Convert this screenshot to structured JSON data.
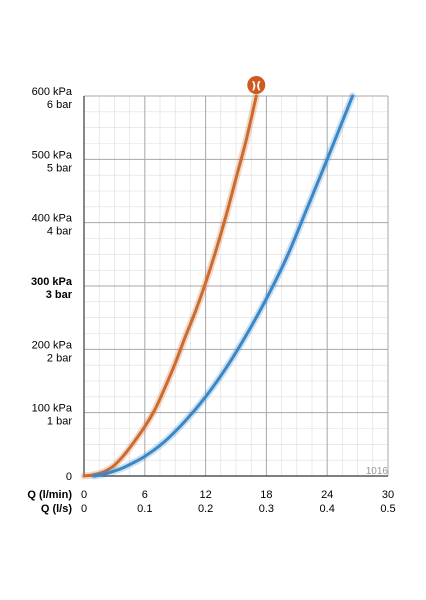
{
  "chart_data": {
    "type": "line",
    "x_axis_primary": {
      "label": "Q (l/min)",
      "ticks": [
        "0",
        "6",
        "12",
        "18",
        "24",
        "30"
      ],
      "range": [
        0,
        30
      ]
    },
    "x_axis_secondary": {
      "label": "Q (l/s)",
      "ticks": [
        "0",
        "0.1",
        "0.2",
        "0.3",
        "0.4",
        "0.5"
      ],
      "range": [
        0,
        0.5
      ]
    },
    "y_axis": {
      "range": [
        0,
        600
      ],
      "ticks": [
        {
          "value": 0,
          "kpa": "0",
          "bar": ""
        },
        {
          "value": 100,
          "kpa": "100 kPa",
          "bar": "1 bar"
        },
        {
          "value": 200,
          "kpa": "200 kPa",
          "bar": "2 bar"
        },
        {
          "value": 300,
          "kpa": "300 kPa",
          "bar": "3 bar",
          "bold": true
        },
        {
          "value": 400,
          "kpa": "400 kPa",
          "bar": "4 bar"
        },
        {
          "value": 500,
          "kpa": "500 kPa",
          "bar": "5 bar"
        },
        {
          "value": 600,
          "kpa": "600 kPa",
          "bar": "6 bar"
        }
      ]
    },
    "grid": true,
    "series": [
      {
        "color": "#cd6a2e",
        "x": [
          0,
          1,
          2,
          3,
          4,
          5,
          6,
          7,
          8,
          9,
          10,
          11,
          12,
          13,
          14,
          15,
          16,
          17
        ],
        "y": [
          0,
          2,
          7,
          17,
          34,
          55,
          78,
          105,
          140,
          178,
          220,
          260,
          305,
          355,
          410,
          470,
          530,
          600
        ]
      },
      {
        "color": "#3a87c8",
        "x": [
          1,
          2,
          3,
          4,
          6,
          8,
          10,
          12,
          14,
          16,
          18,
          20,
          22,
          24,
          26.5
        ],
        "y": [
          0,
          3,
          8,
          14,
          31,
          55,
          87,
          125,
          170,
          222,
          280,
          345,
          422,
          500,
          600
        ]
      }
    ],
    "marker": {
      "symbol": ")(",
      "color": "#cd5a1e",
      "x": 17,
      "y": 600
    },
    "code": "1016"
  }
}
